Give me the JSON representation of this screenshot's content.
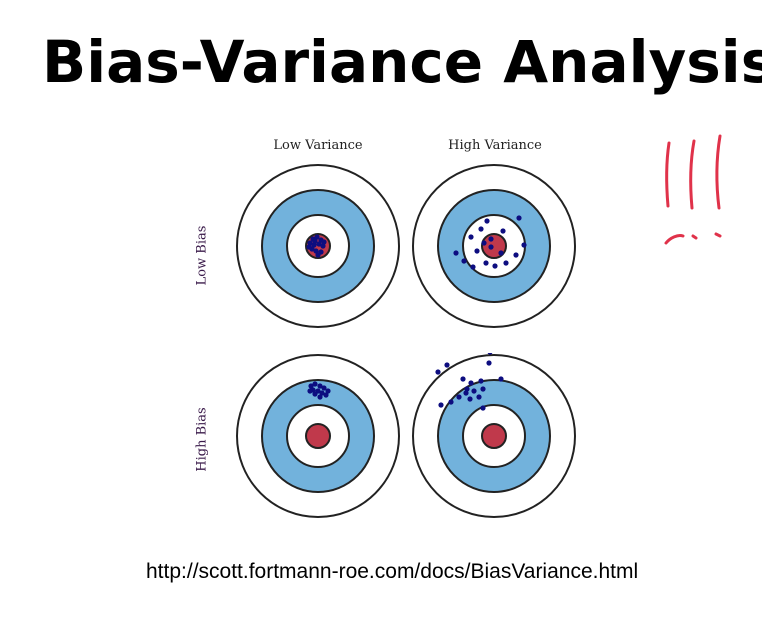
{
  "title": "Bias-Variance Analysis",
  "columns": [
    "Low Variance",
    "High Variance"
  ],
  "rows": [
    "Low Bias",
    "High Bias"
  ],
  "source_url": "http://scott.fortmann-roe.com/docs/BiasVariance.html",
  "colors": {
    "outer_ring": "#ffffff",
    "blue_ring": "#72b2dc",
    "bullseye": "#c0394b",
    "dots": "#0d0d80",
    "ink": "#e0324a"
  }
}
